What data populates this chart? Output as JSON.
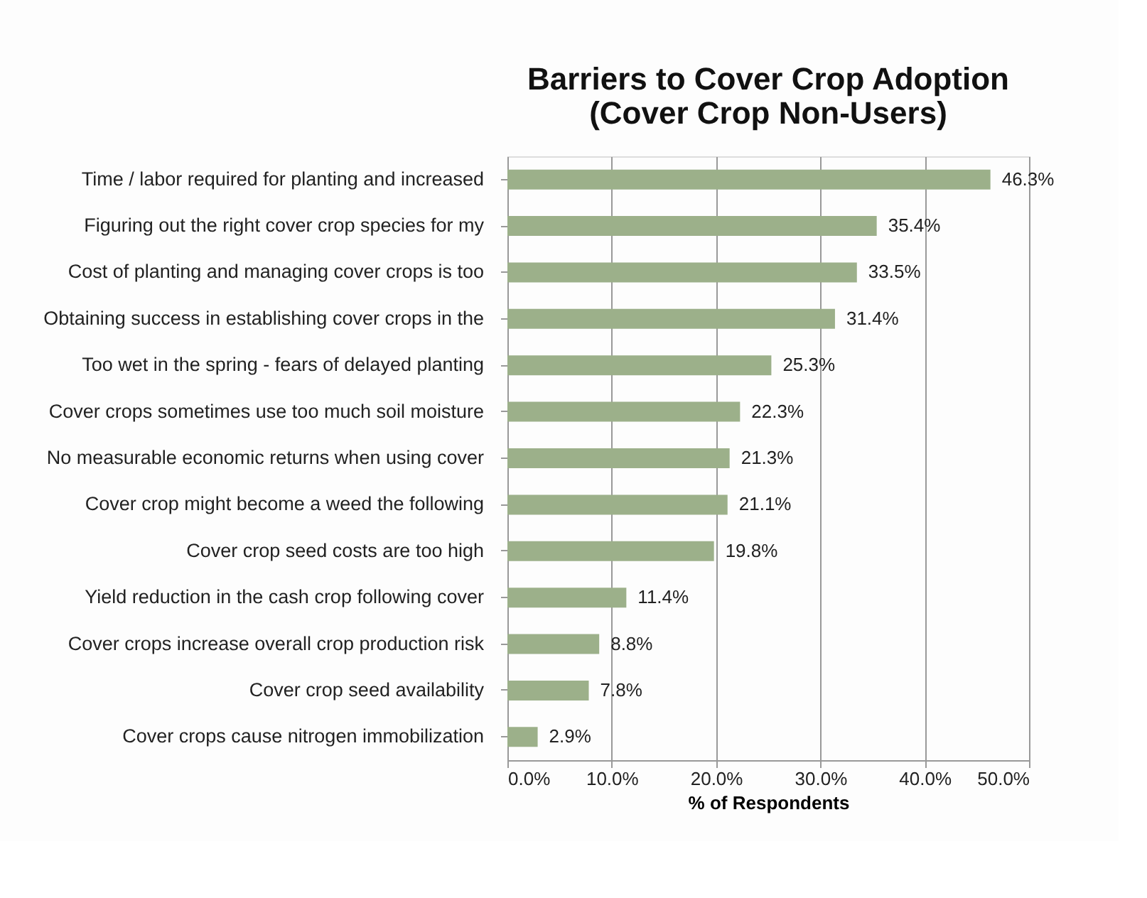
{
  "chart_data": {
    "type": "bar",
    "orientation": "horizontal",
    "title": [
      "Barriers to Cover Crop Adoption",
      "(Cover Crop Non-Users)"
    ],
    "xlabel": "% of Respondents",
    "categories": [
      "Time / labor required for planting and increased",
      "Figuring out the right cover crop species for my",
      "Cost of planting and managing cover crops is too",
      "Obtaining success in establishing cover crops in the",
      "Too wet in the spring - fears of delayed planting",
      "Cover crops sometimes use too much soil moisture",
      "No measurable economic returns when using cover",
      "Cover crop might become a weed the following",
      "Cover crop seed costs are too high",
      "Yield reduction in the cash crop following cover",
      "Cover crops increase overall crop production risk",
      "Cover crop seed availability",
      "Cover crops cause nitrogen immobilization"
    ],
    "values": [
      46.3,
      35.4,
      33.5,
      31.4,
      25.3,
      22.3,
      21.3,
      21.1,
      19.8,
      11.4,
      8.8,
      7.8,
      2.9
    ],
    "value_labels": [
      "46.3%",
      "35.4%",
      "33.5%",
      "31.4%",
      "25.3%",
      "22.3%",
      "21.3%",
      "21.1%",
      "19.8%",
      "11.4%",
      "8.8%",
      "7.8%",
      "2.9%"
    ],
    "color": "#9cb08a",
    "xlim": [
      0,
      50
    ],
    "xticks": [
      {
        "value": 0,
        "label": "0.0%"
      },
      {
        "value": 10,
        "label": "10.0%"
      },
      {
        "value": 20,
        "label": "20.0%"
      },
      {
        "value": 30,
        "label": "30.0%"
      },
      {
        "value": 40,
        "label": "40.0%"
      },
      {
        "value": 50,
        "label": "50.0%"
      }
    ],
    "grid": "x"
  }
}
